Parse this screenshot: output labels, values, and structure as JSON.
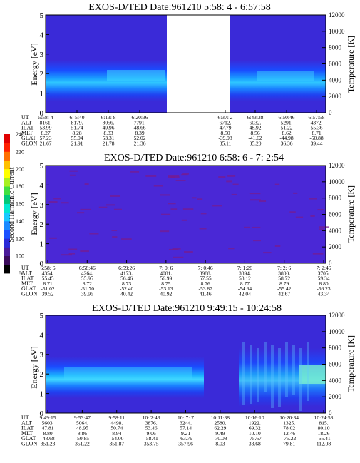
{
  "colorbar": {
    "label": "Second Harmonic Current",
    "ticks": [
      "80",
      "100",
      "120",
      "140",
      "160",
      "180",
      "200",
      "220",
      "240"
    ],
    "colors": [
      "#000000",
      "#3a0a5a",
      "#4a1a9a",
      "#2a2ad8",
      "#1a50ff",
      "#1a8aff",
      "#18c8ff",
      "#00e8d0",
      "#00c878",
      "#40e040",
      "#a8f020",
      "#ffff00",
      "#ffc000",
      "#ff7000",
      "#ff2000",
      "#e00000"
    ]
  },
  "panels": [
    {
      "title": "EXOS-D/TED   Date:961210  5:58: 4 - 6:57:58",
      "ylabel": "Energy [eV]",
      "y2label": "Temperature [K]",
      "ylim": [
        0,
        5
      ],
      "y2lim": [
        0,
        12000
      ],
      "yticks": [
        "0",
        "1",
        "2",
        "3",
        "4",
        "5"
      ],
      "y2ticks": [
        "0",
        "2000",
        "4000",
        "6000",
        "8000",
        "10000",
        "12000"
      ],
      "row_labels": [
        "UT",
        "ALT",
        "ILAT",
        "MLT",
        "GLAT",
        "GLON"
      ],
      "columns": [
        [
          "5:58: 4",
          "8161.",
          "53.99",
          "8.27",
          "57.23",
          "21.67"
        ],
        [
          "6: 5:40",
          "8179.",
          "51.74",
          "8.28",
          "55.04",
          "21.91"
        ],
        [
          "6:13: 8",
          "8056.",
          "49.96",
          "8.33",
          "53.31",
          "21.78"
        ],
        [
          "6:20:36",
          "7791.",
          "48.66",
          "8.39",
          "52.02",
          "21.36"
        ],
        [
          "6:37: 2",
          "6712.",
          "47.79",
          "8.50",
          "-39.98",
          "35.11"
        ],
        [
          "6:43:38",
          "6032.",
          "48.92",
          "8.56",
          "-41.62",
          "35.20"
        ],
        [
          "6:50:46",
          "5291.",
          "51.22",
          "8.62",
          "-44.98",
          "36.36"
        ],
        [
          "6:57:58",
          "4372.",
          "55.36",
          "8.71",
          "-50.88",
          "39.44"
        ]
      ],
      "gap": true
    },
    {
      "title": "EXOS-D/TED   Date:961210  6:58: 6 - 7: 2:54",
      "ylabel": "Energy [eV]",
      "y2label": "Temperature [K]",
      "ylim": [
        0,
        5
      ],
      "y2lim": [
        0,
        12000
      ],
      "yticks": [
        "0",
        "1",
        "2",
        "3",
        "4",
        "5"
      ],
      "y2ticks": [
        "0",
        "2000",
        "4000",
        "6000",
        "8000",
        "10000",
        "12000"
      ],
      "row_labels": [
        "UT",
        "ALT",
        "ILAT",
        "MLT",
        "GLAT",
        "GLON"
      ],
      "columns": [
        [
          "6:58: 6",
          "4354.",
          "55.45",
          "8.71",
          "-51.02",
          "39.52"
        ],
        [
          "6:58:46",
          "4264.",
          "55.95",
          "8.72",
          "-51.70",
          "39.96"
        ],
        [
          "6:59:26",
          "4173.",
          "56.46",
          "8.73",
          "-52.40",
          "40.42"
        ],
        [
          "7: 0: 6",
          "4081.",
          "56.99",
          "8.75",
          "-53.13",
          "40.92"
        ],
        [
          "7: 0:46",
          "3988.",
          "57.55",
          "8.76",
          "-53.87",
          "41.46"
        ],
        [
          "7: 1:26",
          "3894.",
          "58.12",
          "8.77",
          "-54.64",
          "42.04"
        ],
        [
          "7: 2: 6",
          "3800.",
          "58.72",
          "8.79",
          "-55.42",
          "42.67"
        ],
        [
          "7: 2:46",
          "3705.",
          "59.34",
          "8.80",
          "-56.23",
          "43.34"
        ]
      ],
      "gap": false
    },
    {
      "title": "EXOS-D/TED   Date:961210  9:49:15 - 10:24:58",
      "ylabel": "Energy [eV]",
      "y2label": "Temperature [K]",
      "ylim": [
        0,
        5
      ],
      "y2lim": [
        0,
        12000
      ],
      "yticks": [
        "0",
        "1",
        "2",
        "3",
        "4",
        "5"
      ],
      "y2ticks": [
        "0",
        "2000",
        "4000",
        "6000",
        "8000",
        "10000",
        "12000"
      ],
      "row_labels": [
        "UT",
        "ALT",
        "ILAT",
        "MLT",
        "GLAT",
        "GLON"
      ],
      "columns": [
        [
          "9:49:15",
          "5603.",
          "47.81",
          "8.80",
          "-48.68",
          "351.23"
        ],
        [
          "9:53:47",
          "5064.",
          "48.95",
          "8.86",
          "-50.85",
          "351.22"
        ],
        [
          "9:58:11",
          "4498.",
          "50.74",
          "8.94",
          "-54.00",
          "351.87"
        ],
        [
          "10: 2:43",
          "3876.",
          "53.46",
          "9.06",
          "-58.41",
          "353.75"
        ],
        [
          "10: 7: 7",
          "3244.",
          "57.14",
          "9.21",
          "-63.79",
          "357.96"
        ],
        [
          "10:11:38",
          "2580.",
          "62.29",
          "9.49",
          "-70.08",
          "8.03"
        ],
        [
          "10:16:10",
          "1922.",
          "69.32",
          "10.10",
          "-75.67",
          "33.68"
        ],
        [
          "10:20:34",
          "1325.",
          "78.02",
          "12.46",
          "-75.22",
          "79.81"
        ],
        [
          "10:24:58",
          "815.",
          "80.10",
          "18.26",
          "-65.41",
          "112.08"
        ]
      ],
      "gap": false
    }
  ],
  "chart_data": [
    {
      "type": "heatmap",
      "title": "EXOS-D/TED   Date:961210  5:58: 4 - 6:57:58",
      "ylabel": "Energy [eV]",
      "y2label": "Temperature [K]",
      "ylim": [
        0,
        5
      ],
      "y2lim": [
        0,
        12000
      ],
      "x": [
        "5:58: 4",
        "6: 5:40",
        "6:13: 8",
        "6:20:36",
        "6:37: 2",
        "6:43:38",
        "6:50:46",
        "6:57:58"
      ],
      "data_gap": [
        "6:20:36",
        "6:37: 2"
      ],
      "band_energy_ev": [
        1.3,
        2.7
      ],
      "peak_energy_ev": 2.0
    },
    {
      "type": "heatmap",
      "title": "EXOS-D/TED   Date:961210  6:58: 6 - 7: 2:54",
      "ylabel": "Energy [eV]",
      "y2label": "Temperature [K]",
      "ylim": [
        0,
        5
      ],
      "y2lim": [
        0,
        12000
      ],
      "x": [
        "6:58: 6",
        "6:58:46",
        "6:59:26",
        "7: 0: 6",
        "7: 0:46",
        "7: 1:26",
        "7: 2: 6",
        "7: 2:46"
      ]
    },
    {
      "type": "heatmap",
      "title": "EXOS-D/TED   Date:961210  9:49:15 - 10:24:58",
      "ylabel": "Energy [eV]",
      "y2label": "Temperature [K]",
      "ylim": [
        0,
        5
      ],
      "y2lim": [
        0,
        12000
      ],
      "x": [
        "9:49:15",
        "9:53:47",
        "9:58:11",
        "10: 2:43",
        "10: 7: 7",
        "10:11:38",
        "10:16:10",
        "10:20:34",
        "10:24:58"
      ],
      "band_energy_ev": [
        1.2,
        2.8
      ],
      "peak_energy_ev": 2.0
    }
  ]
}
